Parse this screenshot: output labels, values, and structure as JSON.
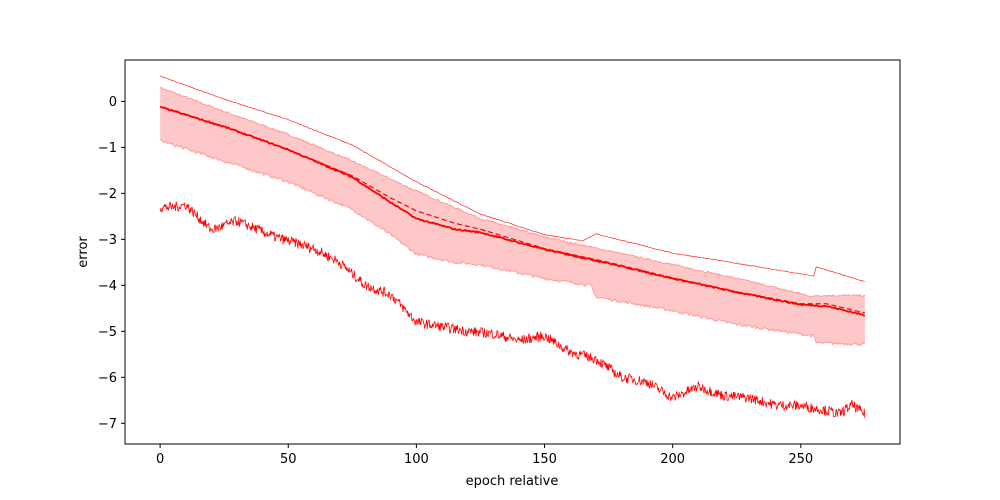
{
  "chart_data": {
    "type": "line",
    "title": "",
    "xlabel": "epoch relative",
    "ylabel": "error",
    "xlim": [
      -13.7,
      288.7
    ],
    "ylim": [
      -7.45,
      0.9
    ],
    "x_ticks": [
      0,
      50,
      100,
      150,
      200,
      250
    ],
    "y_ticks": [
      0,
      -1,
      -2,
      -3,
      -4,
      -5,
      -6,
      -7
    ],
    "x_tick_labels": [
      "0",
      "50",
      "100",
      "150",
      "200",
      "250"
    ],
    "y_tick_labels": [
      "0",
      "−1",
      "−2",
      "−3",
      "−4",
      "−5",
      "−6",
      "−7"
    ],
    "grid": false,
    "legend": "none",
    "color": "#ff0000",
    "band_color": "#ffc8c8",
    "series": [
      {
        "style": "upper-thin-line",
        "x": [
          0,
          25,
          50,
          75,
          100,
          125,
          150,
          165,
          170,
          200,
          225,
          255,
          256,
          265,
          275
        ],
        "y": [
          0.55,
          0.05,
          -0.4,
          -0.95,
          -1.75,
          -2.45,
          -2.9,
          -3.03,
          -2.88,
          -3.3,
          -3.52,
          -3.8,
          -3.6,
          -3.75,
          -3.92
        ]
      },
      {
        "style": "mean-solid",
        "x": [
          0,
          25,
          50,
          75,
          90,
          100,
          115,
          125,
          150,
          175,
          200,
          225,
          250,
          260,
          275
        ],
        "y": [
          -0.12,
          -0.55,
          -1.05,
          -1.65,
          -2.2,
          -2.55,
          -2.78,
          -2.85,
          -3.22,
          -3.52,
          -3.85,
          -4.15,
          -4.42,
          -4.45,
          -4.65
        ]
      },
      {
        "style": "dashed",
        "x": [
          0,
          25,
          50,
          75,
          90,
          100,
          115,
          125,
          150,
          175,
          200,
          225,
          250,
          260,
          275
        ],
        "y": [
          -0.12,
          -0.55,
          -1.05,
          -1.62,
          -2.1,
          -2.38,
          -2.65,
          -2.78,
          -3.2,
          -3.5,
          -3.84,
          -4.14,
          -4.4,
          -4.4,
          -4.6
        ]
      },
      {
        "style": "band-upper",
        "x": [
          0,
          25,
          50,
          75,
          100,
          125,
          150,
          175,
          200,
          225,
          255,
          256,
          275
        ],
        "y": [
          0.3,
          -0.22,
          -0.72,
          -1.3,
          -1.95,
          -2.55,
          -2.95,
          -3.25,
          -3.55,
          -3.85,
          -4.25,
          -4.22,
          -4.22
        ]
      },
      {
        "style": "band-lower",
        "x": [
          0,
          25,
          50,
          75,
          90,
          100,
          115,
          125,
          150,
          168,
          170,
          200,
          225,
          255,
          256,
          275
        ],
        "y": [
          -0.85,
          -1.3,
          -1.75,
          -2.35,
          -2.9,
          -3.32,
          -3.5,
          -3.55,
          -3.85,
          -4.0,
          -4.25,
          -4.55,
          -4.85,
          -5.1,
          -5.25,
          -5.28
        ]
      },
      {
        "style": "lower-noisy",
        "x": [
          0,
          5,
          10,
          20,
          30,
          45,
          60,
          70,
          80,
          90,
          100,
          110,
          120,
          130,
          140,
          150,
          160,
          170,
          180,
          190,
          200,
          210,
          220,
          230,
          240,
          250,
          260,
          265,
          270,
          275
        ],
        "y": [
          -2.3,
          -2.3,
          -2.25,
          -2.8,
          -2.6,
          -2.95,
          -3.2,
          -3.5,
          -4.0,
          -4.2,
          -4.8,
          -4.9,
          -5.0,
          -5.05,
          -5.2,
          -5.1,
          -5.45,
          -5.6,
          -6.0,
          -6.1,
          -6.45,
          -6.2,
          -6.4,
          -6.45,
          -6.6,
          -6.62,
          -6.72,
          -6.8,
          -6.6,
          -6.8
        ]
      }
    ]
  }
}
